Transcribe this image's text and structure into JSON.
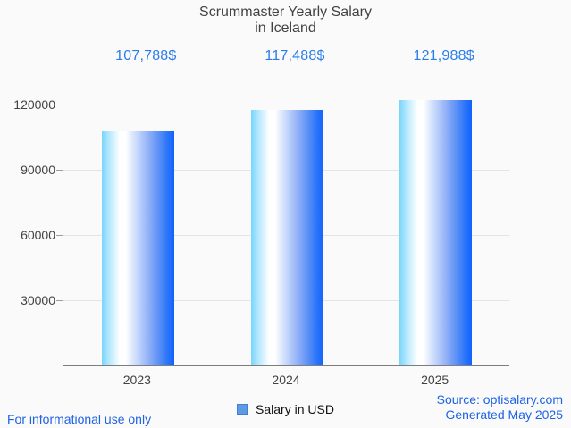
{
  "title": {
    "line1": "Scrummaster Yearly Salary",
    "line2": "in Iceland"
  },
  "chart_data": {
    "type": "bar",
    "title": "Scrummaster Yearly Salary in Iceland",
    "categories": [
      "2023",
      "2024",
      "2025"
    ],
    "values": [
      107788,
      117488,
      121988
    ],
    "value_labels": [
      "107,788$",
      "117,488$",
      "121,988$"
    ],
    "series": [
      {
        "name": "Salary in USD",
        "values": [
          107788,
          117488,
          121988
        ]
      }
    ],
    "xlabel": "",
    "ylabel": "",
    "y_ticks": [
      30000,
      60000,
      90000,
      120000
    ],
    "y_tick_labels": [
      "30000",
      "60000",
      "90000",
      "120000"
    ],
    "ylim": [
      0,
      139500
    ],
    "grid": true,
    "legend": {
      "label": "Salary in USD",
      "position": "bottom"
    }
  },
  "footer": {
    "left": "For informational use only",
    "source": "Source: optisalary.com",
    "generated": "Generated May 2025"
  },
  "colors": {
    "background": "#FAFAFA",
    "title_text": "#424242",
    "axis_line": "#7D7D7D",
    "grid_line": "#E4E4E4",
    "axis_text": "#424242",
    "value_text": "#2B7CEB",
    "footer_text": "#1E63E6",
    "legend_fill": "#5E9BE3",
    "legend_border": "#3F7FD6",
    "bar_gradient_left": "#79D5FB",
    "bar_gradient_mid": "#FFFFFF",
    "bar_gradient_right": "#0E63FE"
  }
}
